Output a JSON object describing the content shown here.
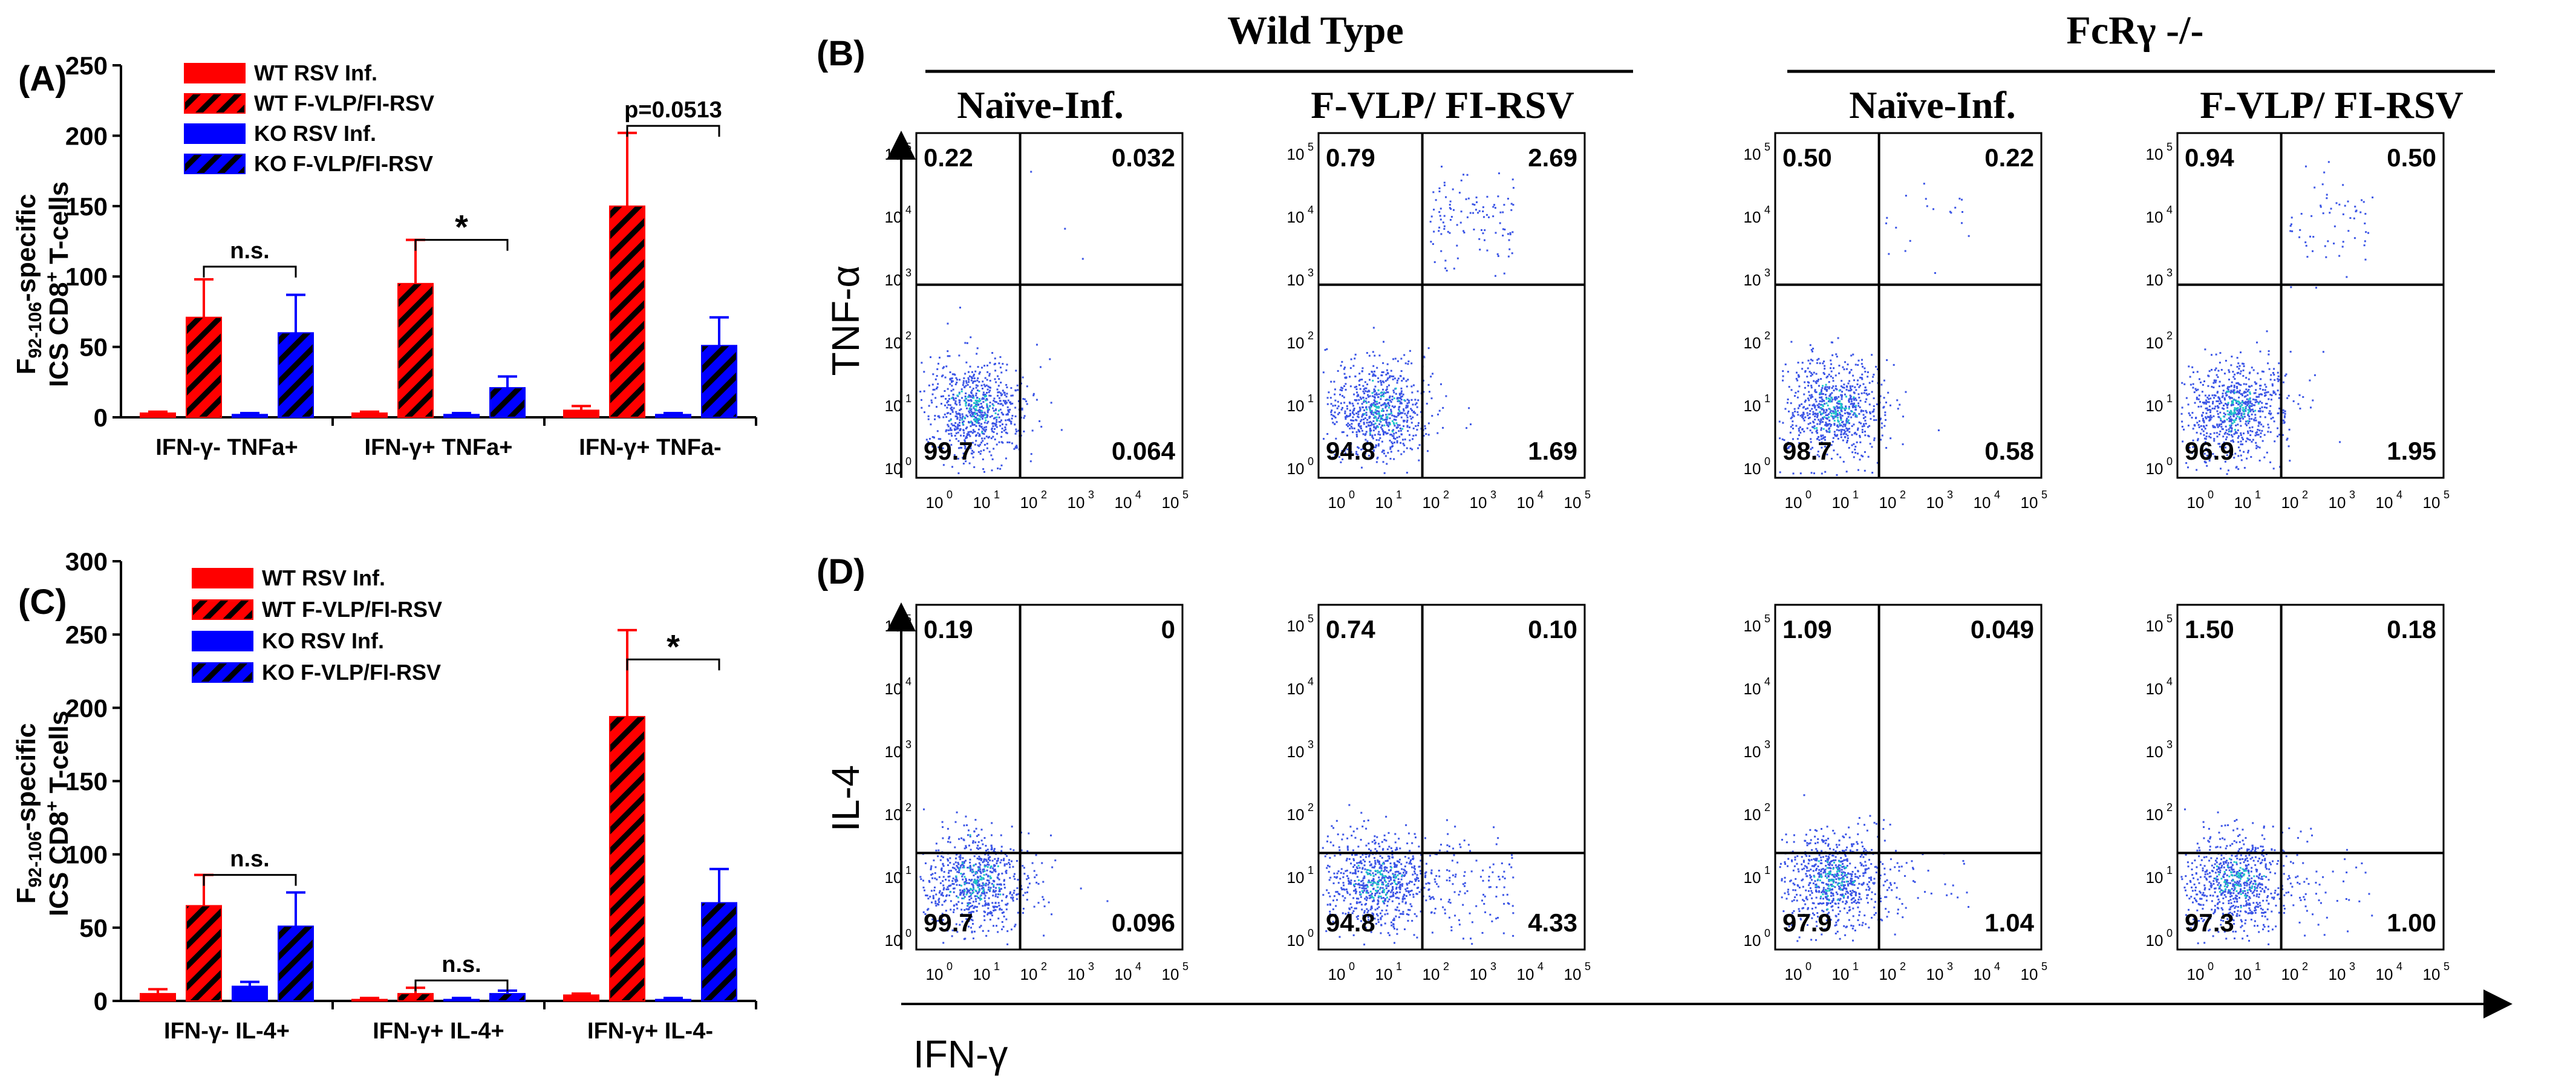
{
  "colors": {
    "red": "#ff0000",
    "blue": "#0000ff",
    "black": "#000000",
    "dot": "#3b55e6",
    "dot_core": "#1ec8c8"
  },
  "panel_labels": {
    "a": "(A)",
    "b": "(B)",
    "c": "(C)",
    "d": "(D)"
  },
  "chart_data": [
    {
      "id": "A",
      "type": "bar",
      "ylabel_line1": "F",
      "ylabel_sub": "92-106",
      "ylabel_rest": "-specific",
      "ylabel_line2": "ICS CD8",
      "ylabel_sup": "+",
      "ylabel_line2b": " T-cells",
      "ylim": [
        0,
        250
      ],
      "yticks": [
        "0",
        "50",
        "100",
        "150",
        "200",
        "250"
      ],
      "categories": [
        "IFN-γ- TNFa+",
        "IFN-γ+ TNFa+",
        "IFN-γ+ TNFa-"
      ],
      "series": [
        {
          "name": "WT RSV Inf.",
          "color": "red",
          "hatch": false,
          "values": [
            3,
            3,
            5
          ],
          "errors": [
            1,
            1,
            3
          ]
        },
        {
          "name": "WT F-VLP/FI-RSV",
          "color": "red",
          "hatch": true,
          "values": [
            71,
            95,
            150
          ],
          "errors": [
            27,
            31,
            52
          ]
        },
        {
          "name": "KO RSV Inf.",
          "color": "blue",
          "hatch": false,
          "values": [
            2,
            2,
            2
          ],
          "errors": [
            1,
            1,
            1
          ]
        },
        {
          "name": "KO F-VLP/FI-RSV",
          "color": "blue",
          "hatch": true,
          "values": [
            60,
            21,
            51
          ],
          "errors": [
            27,
            8,
            20
          ]
        }
      ],
      "annotations": [
        {
          "group": 0,
          "text": "n.s.",
          "y": 107
        },
        {
          "group": 1,
          "text": "*",
          "y": 126
        },
        {
          "group": 2,
          "text": "p=0.0513",
          "y": 207
        }
      ]
    },
    {
      "id": "C",
      "type": "bar",
      "ylabel_line1": "F",
      "ylabel_sub": "92-106",
      "ylabel_rest": "-specific",
      "ylabel_line2": "ICS CD8",
      "ylabel_sup": "+",
      "ylabel_line2b": " T-cells",
      "ylim": [
        0,
        300
      ],
      "yticks": [
        "0",
        "50",
        "100",
        "150",
        "200",
        "250",
        "300"
      ],
      "categories": [
        "IFN-γ- IL-4+",
        "IFN-γ+ IL-4+",
        "IFN-γ+ IL-4-"
      ],
      "series": [
        {
          "name": "WT RSV Inf.",
          "color": "red",
          "hatch": false,
          "values": [
            5,
            1,
            4
          ],
          "errors": [
            3,
            1,
            1
          ]
        },
        {
          "name": "WT F-VLP/FI-RSV",
          "color": "red",
          "hatch": true,
          "values": [
            65,
            5,
            194
          ],
          "errors": [
            21,
            4,
            59
          ]
        },
        {
          "name": "KO RSV Inf.",
          "color": "blue",
          "hatch": false,
          "values": [
            10,
            1,
            1
          ],
          "errors": [
            3,
            1,
            1
          ]
        },
        {
          "name": "KO F-VLP/FI-RSV",
          "color": "blue",
          "hatch": true,
          "values": [
            51,
            5,
            67
          ],
          "errors": [
            23,
            2,
            23
          ]
        }
      ],
      "annotations": [
        {
          "group": 0,
          "text": "n.s.",
          "y": 86
        },
        {
          "group": 1,
          "text": "n.s.",
          "y": 14
        },
        {
          "group": 2,
          "text": "*",
          "y": 233
        }
      ]
    }
  ],
  "flow": {
    "groups": [
      {
        "title": "Wild Type",
        "subtitles": [
          "Naïve-Inf.",
          "F-VLP/ FI-RSV"
        ]
      },
      {
        "title": "FcRγ -/-",
        "subtitles": [
          "Naïve-Inf.",
          "F-VLP/ FI-RSV"
        ]
      }
    ],
    "y_axis_b": "TNF-α",
    "y_axis_d": "IL-4",
    "x_axis": "IFN-γ",
    "tick_base": "10",
    "tick_exps": [
      "0",
      "1",
      "2",
      "3",
      "4",
      "5"
    ],
    "row_b": [
      {
        "ul": "0.22",
        "ur": "0.032",
        "ll": "99.7",
        "lr": "0.064"
      },
      {
        "ul": "0.79",
        "ur": "2.69",
        "ll": "94.8",
        "lr": "1.69"
      },
      {
        "ul": "0.50",
        "ur": "0.22",
        "ll": "98.7",
        "lr": "0.58"
      },
      {
        "ul": "0.94",
        "ur": "0.50",
        "ll": "96.9",
        "lr": "1.95"
      }
    ],
    "row_d": [
      {
        "ul": "0.19",
        "ur": "0",
        "ll": "99.7",
        "lr": "0.096"
      },
      {
        "ul": "0.74",
        "ur": "0.10",
        "ll": "94.8",
        "lr": "4.33"
      },
      {
        "ul": "1.09",
        "ur": "0.049",
        "ll": "97.9",
        "lr": "1.04"
      },
      {
        "ul": "1.50",
        "ur": "0.18",
        "ll": "97.3",
        "lr": "1.00"
      }
    ]
  }
}
